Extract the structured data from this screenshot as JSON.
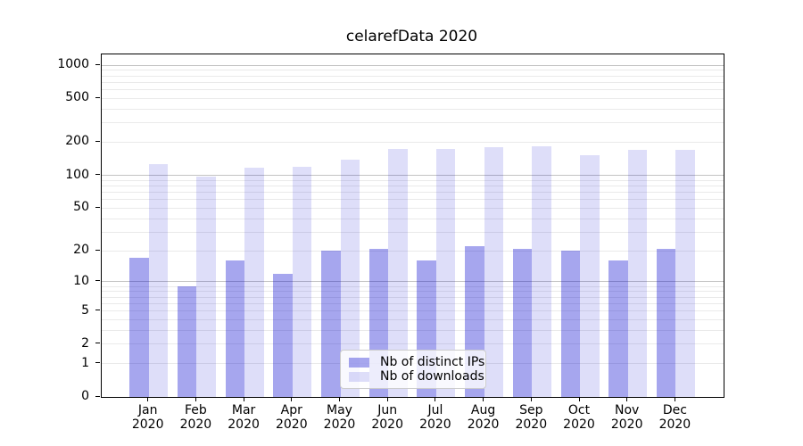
{
  "title": "celarefData 2020",
  "chart_data": {
    "type": "bar",
    "categories": [
      "Jan 2020",
      "Feb 2020",
      "Mar 2020",
      "Apr 2020",
      "May 2020",
      "Jun 2020",
      "Jul 2020",
      "Aug 2020",
      "Sep 2020",
      "Oct 2020",
      "Nov 2020",
      "Dec 2020"
    ],
    "x_tick_line1": [
      "Jan",
      "Feb",
      "Mar",
      "Apr",
      "May",
      "Jun",
      "Jul",
      "Aug",
      "Sep",
      "Oct",
      "Nov",
      "Dec"
    ],
    "x_tick_line2": "2020",
    "series": [
      {
        "name": "Nb of distinct IPs",
        "color": "rgba(0,0,205,0.35)",
        "values": [
          17,
          9,
          16,
          12,
          20,
          21,
          16,
          22,
          21,
          20,
          16,
          21
        ]
      },
      {
        "name": "Nb of downloads",
        "color": "rgba(0,0,205,0.13)",
        "values": [
          126,
          98,
          118,
          120,
          138,
          174,
          175,
          180,
          185,
          153,
          169,
          170
        ]
      }
    ],
    "yscale": "log1p",
    "ylim": [
      0,
      1250
    ],
    "yticks": [
      0,
      1,
      2,
      5,
      10,
      20,
      50,
      100,
      200,
      500,
      1000
    ],
    "ygrid_major": [
      10,
      100,
      1000
    ],
    "ygrid_minor": [
      1,
      2,
      3,
      4,
      5,
      6,
      7,
      8,
      9,
      20,
      30,
      40,
      50,
      60,
      70,
      80,
      90,
      200,
      300,
      400,
      500,
      600,
      700,
      800,
      900
    ],
    "grid": "horizontal",
    "legend_position": "inside-bottom-center"
  },
  "colors": {
    "grid_major": "#c3c3c3",
    "grid_minor": "#eaeaea",
    "axis": "#000000",
    "background": "#ffffff",
    "legend_border": "#cccccc"
  }
}
